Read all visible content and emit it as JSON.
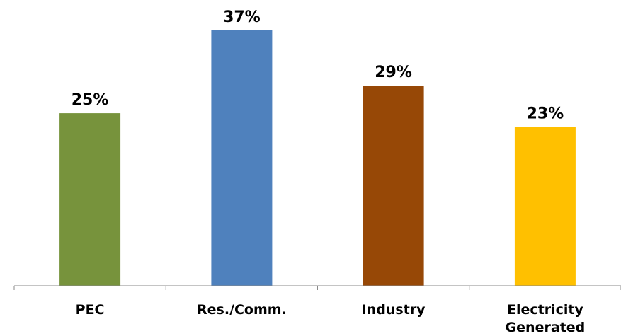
{
  "chart_data": {
    "type": "bar",
    "categories": [
      "PEC",
      "Res./Comm.",
      "Industry",
      "Electricity Generated"
    ],
    "category_label_lines": [
      [
        "PEC"
      ],
      [
        "Res./Comm."
      ],
      [
        "Industry"
      ],
      [
        "Electricity",
        "Generated"
      ]
    ],
    "values": [
      25,
      37,
      29,
      23
    ],
    "data_labels": [
      "25%",
      "37%",
      "29%",
      "23%"
    ],
    "colors": [
      "#77933c",
      "#4f81bd",
      "#974806",
      "#ffc000"
    ],
    "title": "",
    "xlabel": "",
    "ylabel": "",
    "unit": "%",
    "ylim": [
      0,
      40
    ],
    "grid": false,
    "legend": "none"
  }
}
